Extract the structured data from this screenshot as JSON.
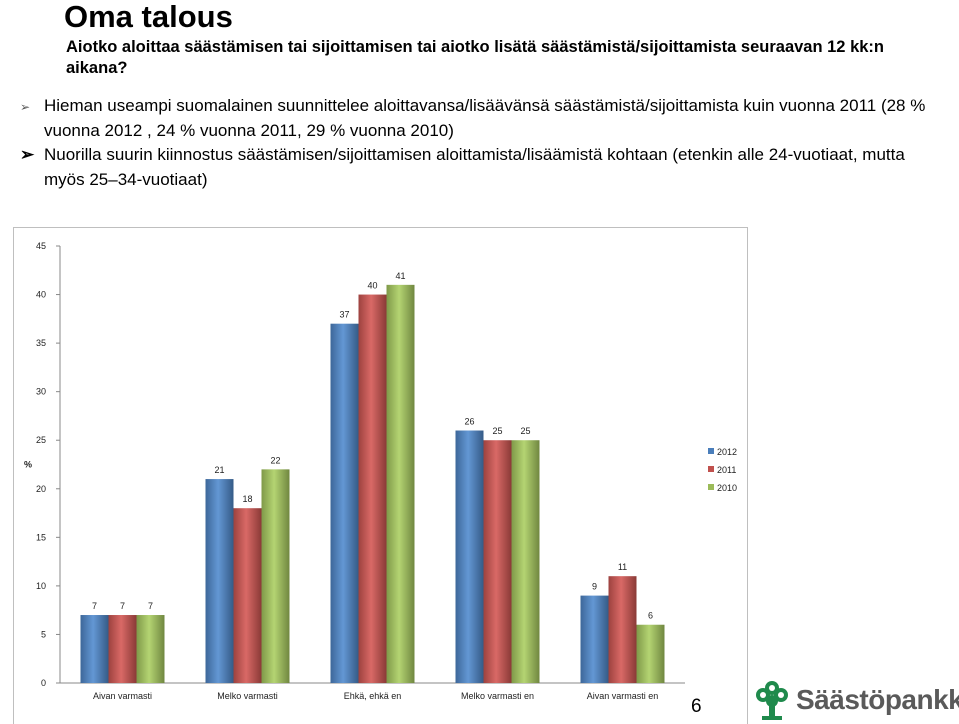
{
  "slide": {
    "title": "Oma talous",
    "subtitle": "Aiotko aloittaa säästämisen tai sijoittamisen tai aiotko lisätä säästämistä/sijoittamista seuraavan 12 kk:n aikana?",
    "bullets": [
      {
        "text": "Hieman useampi suomalainen suunnittelee aloittavansa/lisäävänsä säästämistä/sijoittamista kuin vuonna 2011 (28 % vuonna 2012 , 24 % vuonna 2011, 29 % vuonna 2010)"
      },
      {
        "text": "Nuorilla suurin kiinnostus säästämisen/sijoittamisen aloittamista/lisäämistä kohtaan (etenkin alle 24-vuotiaat, mutta myös 25–34-vuotiaat)"
      }
    ],
    "page_number": "6",
    "logo_text": "Säästöpankki"
  },
  "chart_data": {
    "type": "bar",
    "title": "",
    "xlabel": "",
    "ylabel": "%",
    "ylim": [
      0,
      45
    ],
    "yticks": [
      0,
      5,
      10,
      15,
      20,
      25,
      30,
      35,
      40,
      45
    ],
    "grid": false,
    "legend_position": "right",
    "categories": [
      "Aivan varmasti",
      "Melko varmasti",
      "Ehkä, ehkä en",
      "Melko varmasti en",
      "Aivan varmasti en"
    ],
    "series": [
      {
        "name": "2012",
        "color": "#4a7ebb",
        "values": [
          7,
          21,
          37,
          26,
          9
        ],
        "labels": [
          "7",
          "21",
          "37",
          "26",
          "9"
        ]
      },
      {
        "name": "2011",
        "color": "#c0504d",
        "values": [
          7,
          18,
          40,
          25,
          11
        ],
        "labels": [
          "7",
          "18",
          "40",
          "25",
          "11"
        ]
      },
      {
        "name": "2010",
        "color": "#9bbb59",
        "values": [
          7,
          22,
          41,
          25,
          6
        ],
        "labels": [
          "7",
          "22",
          "41",
          "25",
          "6"
        ]
      }
    ]
  }
}
